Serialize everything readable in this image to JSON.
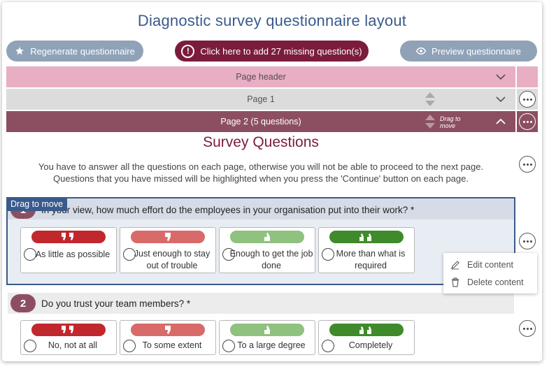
{
  "title": "Diagnostic survey questionnaire layout",
  "toolbar": {
    "regenerate_label": "Regenerate questionnaire",
    "missing_label": "Click here to add 27 missing question(s)",
    "preview_label": "Preview questionnaire"
  },
  "pages": {
    "header_label": "Page header",
    "page1_label": "Page 1",
    "page2_label": "Page 2 (5 questions)",
    "drag_hint": "Drag to move"
  },
  "survey": {
    "heading": "Survey Questions",
    "intro_line1": "You have to answer all the questions on each page, otherwise you will not be able to proceed to the next page.",
    "intro_line2": "Questions that you have missed will be highlighted when you press the 'Continue' button on each page."
  },
  "drag_tag": "Drag to move",
  "questions": [
    {
      "number": "1",
      "text": "In your view, how much effort do the employees in your organisation put into their work? *",
      "options": [
        {
          "label": "As little as possible",
          "color": "#c0282e",
          "icon": "thumbs-down-double-icon"
        },
        {
          "label": "Just enough to stay out of trouble",
          "color": "#d96a6a",
          "icon": "thumbs-down-icon"
        },
        {
          "label": "Enough to get the job done",
          "color": "#8fc17f",
          "icon": "thumbs-up-icon"
        },
        {
          "label": "More than what is required",
          "color": "#3f8a2a",
          "icon": "thumbs-up-double-icon"
        }
      ]
    },
    {
      "number": "2",
      "text": "Do you trust your team members? *",
      "options": [
        {
          "label": "No, not at all",
          "color": "#c0282e",
          "icon": "thumbs-down-double-icon"
        },
        {
          "label": "To some extent",
          "color": "#d96a6a",
          "icon": "thumbs-down-icon"
        },
        {
          "label": "To a large degree",
          "color": "#8fc17f",
          "icon": "thumbs-up-icon"
        },
        {
          "label": "Completely",
          "color": "#3f8a2a",
          "icon": "thumbs-up-double-icon"
        }
      ]
    }
  ],
  "context_menu": {
    "edit_label": "Edit content",
    "delete_label": "Delete content"
  },
  "colors": {
    "accent": "#3a5a8c",
    "brand": "#7b1c3d",
    "page_header": "#e8aec4",
    "page_selected": "#8c4f62"
  }
}
